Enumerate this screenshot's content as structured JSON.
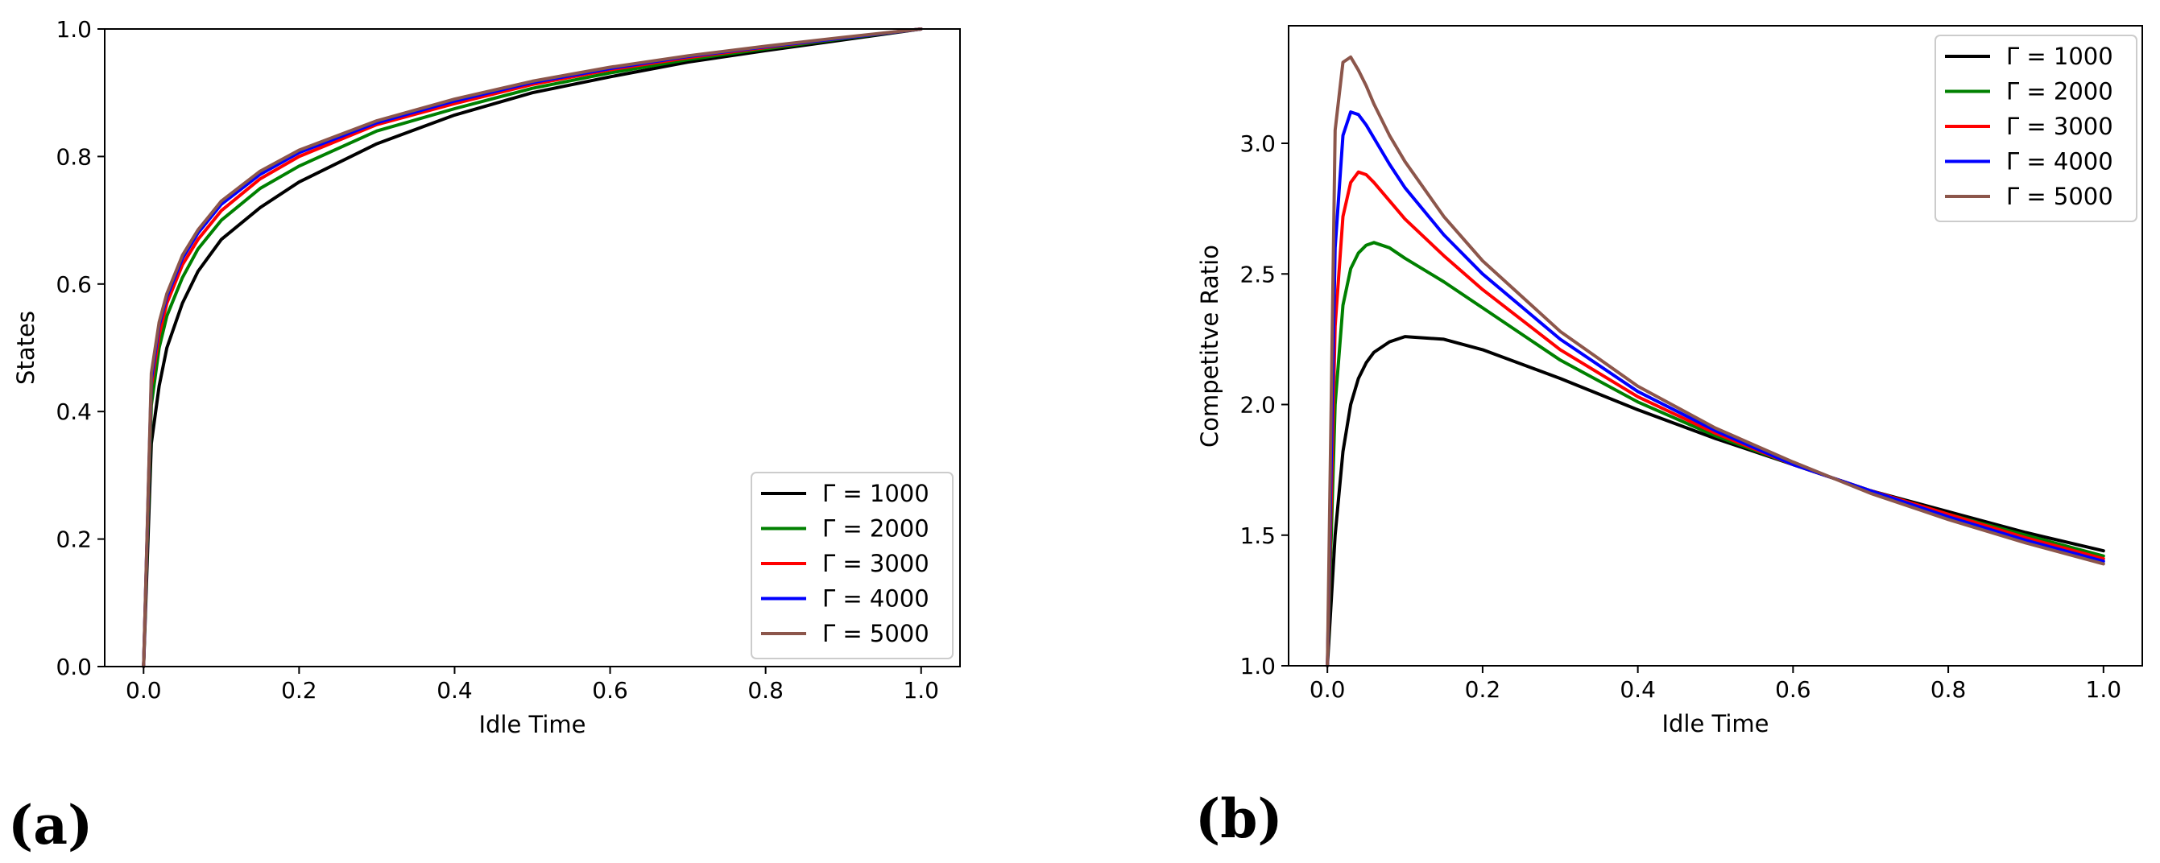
{
  "chart_data": [
    {
      "id": "a",
      "panel_label": "(a)",
      "type": "line",
      "xlabel": "Idle Time",
      "ylabel": "States",
      "xlim": [
        -0.05,
        1.05
      ],
      "ylim": [
        0.0,
        1.0
      ],
      "xticks": [
        0.0,
        0.2,
        0.4,
        0.6,
        0.8,
        1.0
      ],
      "xtick_labels": [
        "0.0",
        "0.2",
        "0.4",
        "0.6",
        "0.8",
        "1.0"
      ],
      "yticks": [
        0.0,
        0.2,
        0.4,
        0.6,
        0.8,
        1.0
      ],
      "ytick_labels": [
        "0.0",
        "0.2",
        "0.4",
        "0.6",
        "0.8",
        "1.0"
      ],
      "legend_position": "lower-right",
      "x": [
        0.0,
        0.01,
        0.02,
        0.03,
        0.05,
        0.07,
        0.1,
        0.15,
        0.2,
        0.3,
        0.4,
        0.5,
        0.6,
        0.7,
        0.8,
        0.9,
        1.0
      ],
      "series": [
        {
          "name": "Γ = 1000",
          "color": "#000000",
          "values": [
            0.0,
            0.35,
            0.44,
            0.5,
            0.57,
            0.62,
            0.67,
            0.72,
            0.76,
            0.82,
            0.865,
            0.9,
            0.925,
            0.948,
            0.966,
            0.983,
            1.0
          ]
        },
        {
          "name": "Γ = 2000",
          "color": "#008000",
          "values": [
            0.0,
            0.41,
            0.5,
            0.55,
            0.61,
            0.655,
            0.7,
            0.75,
            0.785,
            0.84,
            0.875,
            0.907,
            0.931,
            0.952,
            0.969,
            0.985,
            1.0
          ]
        },
        {
          "name": "Γ = 3000",
          "color": "#ff0000",
          "values": [
            0.0,
            0.44,
            0.52,
            0.57,
            0.63,
            0.67,
            0.715,
            0.765,
            0.8,
            0.85,
            0.883,
            0.913,
            0.936,
            0.955,
            0.971,
            0.986,
            1.0
          ]
        },
        {
          "name": "Γ = 4000",
          "color": "#0000ff",
          "values": [
            0.0,
            0.45,
            0.535,
            0.58,
            0.64,
            0.68,
            0.725,
            0.772,
            0.806,
            0.853,
            0.887,
            0.916,
            0.938,
            0.957,
            0.972,
            0.986,
            1.0
          ]
        },
        {
          "name": "Γ = 5000",
          "color": "#8c564b",
          "values": [
            0.0,
            0.46,
            0.54,
            0.585,
            0.645,
            0.685,
            0.73,
            0.777,
            0.81,
            0.856,
            0.89,
            0.918,
            0.94,
            0.958,
            0.973,
            0.987,
            1.0
          ]
        }
      ]
    },
    {
      "id": "b",
      "panel_label": "(b)",
      "type": "line",
      "xlabel": "Idle Time",
      "ylabel": "Competitve Ratio",
      "xlim": [
        -0.05,
        1.05
      ],
      "ylim": [
        1.0,
        3.45
      ],
      "xticks": [
        0.0,
        0.2,
        0.4,
        0.6,
        0.8,
        1.0
      ],
      "xtick_labels": [
        "0.0",
        "0.2",
        "0.4",
        "0.6",
        "0.8",
        "1.0"
      ],
      "yticks": [
        1.0,
        1.5,
        2.0,
        2.5,
        3.0
      ],
      "ytick_labels": [
        "1.0",
        "1.5",
        "2.0",
        "2.5",
        "3.0"
      ],
      "legend_position": "upper-right",
      "x": [
        0.0,
        0.01,
        0.02,
        0.03,
        0.04,
        0.05,
        0.06,
        0.08,
        0.1,
        0.15,
        0.2,
        0.3,
        0.4,
        0.5,
        0.6,
        0.7,
        0.8,
        0.9,
        1.0
      ],
      "series": [
        {
          "name": "Γ = 1000",
          "color": "#000000",
          "values": [
            1.0,
            1.5,
            1.82,
            2.0,
            2.1,
            2.16,
            2.2,
            2.24,
            2.26,
            2.25,
            2.21,
            2.1,
            1.98,
            1.87,
            1.77,
            1.67,
            1.59,
            1.51,
            1.44
          ]
        },
        {
          "name": "Γ = 2000",
          "color": "#008000",
          "values": [
            1.0,
            2.0,
            2.38,
            2.52,
            2.58,
            2.61,
            2.62,
            2.6,
            2.56,
            2.47,
            2.37,
            2.17,
            2.01,
            1.88,
            1.77,
            1.67,
            1.58,
            1.5,
            1.42
          ]
        },
        {
          "name": "Γ = 3000",
          "color": "#ff0000",
          "values": [
            1.0,
            2.3,
            2.72,
            2.85,
            2.89,
            2.88,
            2.85,
            2.78,
            2.71,
            2.57,
            2.44,
            2.21,
            2.03,
            1.89,
            1.77,
            1.67,
            1.58,
            1.49,
            1.41
          ]
        },
        {
          "name": "Γ = 4000",
          "color": "#0000ff",
          "values": [
            1.0,
            2.6,
            3.03,
            3.12,
            3.11,
            3.07,
            3.02,
            2.92,
            2.83,
            2.65,
            2.5,
            2.25,
            2.05,
            1.9,
            1.77,
            1.67,
            1.57,
            1.48,
            1.4
          ]
        },
        {
          "name": "Γ = 5000",
          "color": "#8c564b",
          "values": [
            1.0,
            3.05,
            3.31,
            3.33,
            3.28,
            3.22,
            3.15,
            3.03,
            2.93,
            2.72,
            2.55,
            2.28,
            2.07,
            1.91,
            1.78,
            1.66,
            1.56,
            1.47,
            1.39
          ]
        }
      ]
    }
  ]
}
